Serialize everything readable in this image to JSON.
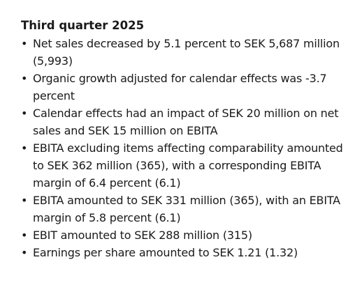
{
  "header": {
    "title": "Third quarter 2025"
  },
  "bullets": [
    "Net sales decreased by 5.1 percent to SEK 5,687 million (5,993)",
    "Organic growth adjusted for calendar effects was -3.7 percent",
    "Calendar effects had an impact of SEK 20 million on net sales and SEK 15 million on EBITA",
    "EBITA excluding items affecting comparability amounted to SEK 362 million (365), with a corresponding EBITA margin of 6.4 percent (6.1)",
    "EBITA amounted to SEK 331 million (365), with an EBITA margin of 5.8 percent (6.1)",
    "EBIT amounted to SEK 288 million (315)",
    "Earnings per share amounted to SEK 1.21 (1.32)"
  ]
}
